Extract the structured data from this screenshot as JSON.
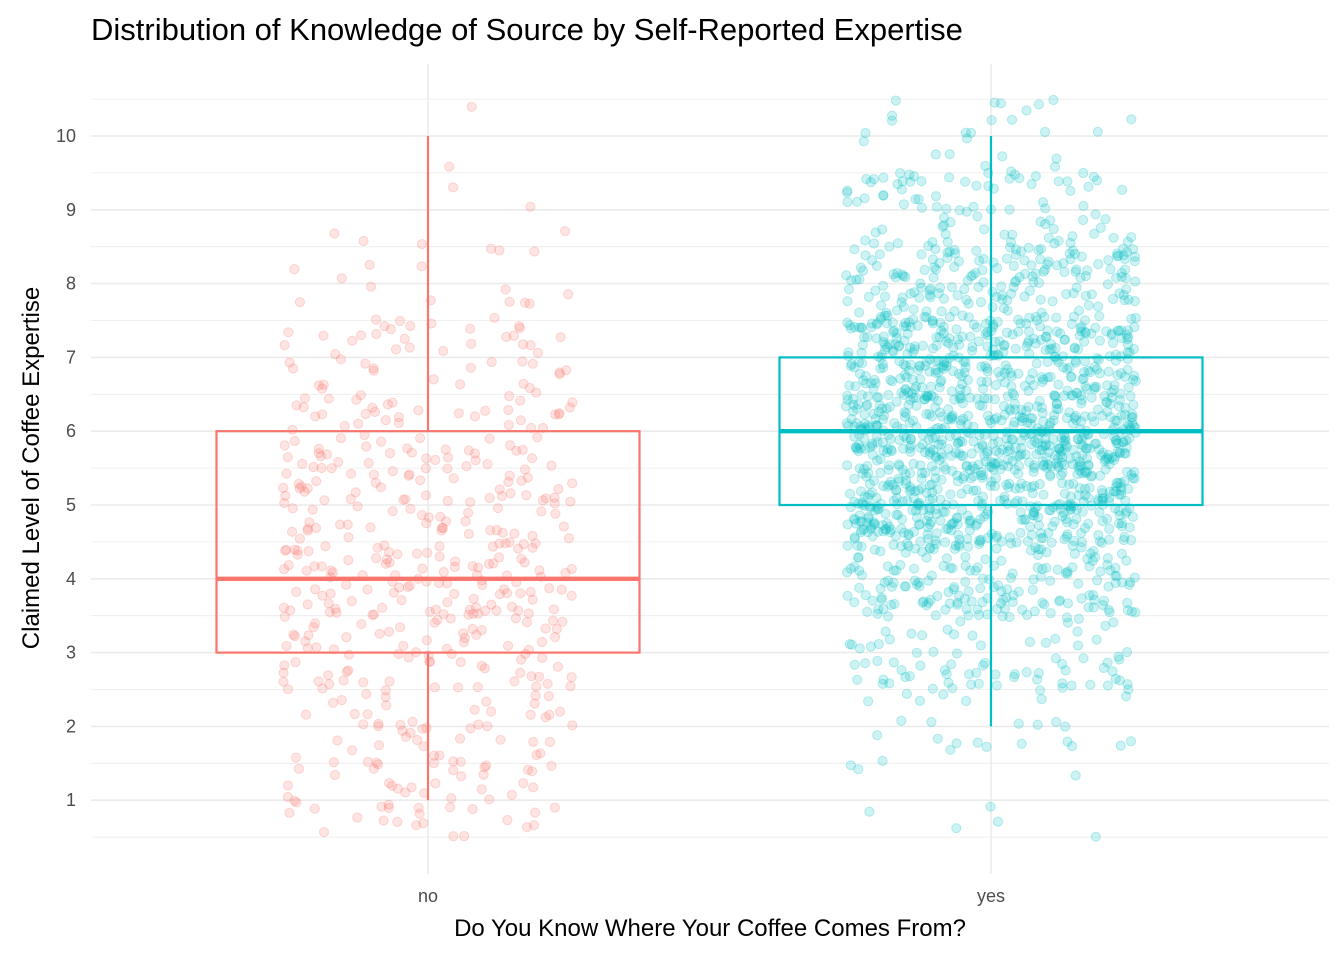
{
  "chart_data": {
    "type": "boxplot",
    "title": "Distribution of Knowledge of Source by Self-Reported Expertise",
    "xlabel": "Do You Know Where Your Coffee Comes From?",
    "ylabel": "Claimed Level of Coffee Expertise",
    "categories": [
      "no",
      "yes"
    ],
    "y_ticks": [
      1,
      2,
      3,
      4,
      5,
      6,
      7,
      8,
      9,
      10
    ],
    "ylim": [
      0.5,
      10.5
    ],
    "grid": true,
    "jitter_points": true,
    "series": [
      {
        "category": "no",
        "color": "#F8766D",
        "min": 1,
        "q1": 3,
        "median": 4,
        "q3": 6,
        "max": 10,
        "approx_points": 520
      },
      {
        "category": "yes",
        "color": "#00BFC4",
        "min": 2,
        "q1": 5,
        "median": 6,
        "q3": 7,
        "max": 10,
        "approx_points": 1700
      }
    ]
  }
}
